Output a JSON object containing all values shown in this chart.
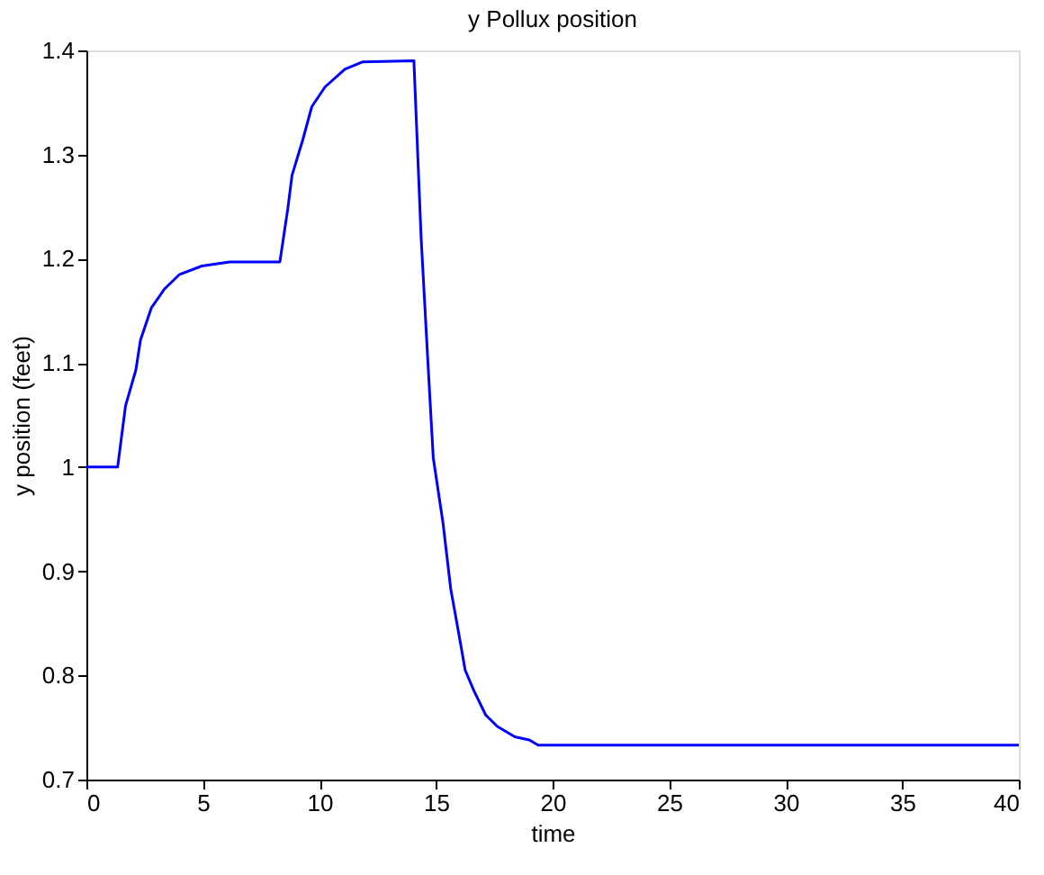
{
  "chart_data": {
    "type": "line",
    "title": "y Pollux position",
    "xlabel": "time",
    "ylabel": "y position (feet)",
    "xlim": [
      0,
      40
    ],
    "xticks": [
      0,
      5,
      10,
      15,
      20,
      25,
      30,
      35,
      40
    ],
    "ylim": [
      0.7,
      1.4
    ],
    "yticks": [
      0.7,
      0.8,
      0.9,
      1,
      1.1,
      1.2,
      1.3,
      1.4
    ],
    "grid": false,
    "marker": "none",
    "line_style": "solid",
    "series": [
      {
        "color": "#0000ff",
        "x": [
          0,
          1.34,
          1.68,
          2.12,
          2.32,
          2.79,
          3.35,
          4.0,
          4.95,
          6.14,
          8.3,
          8.64,
          8.82,
          9.28,
          9.67,
          10.24,
          11.09,
          11.86,
          14.05,
          14.36,
          14.64,
          14.88,
          15.3,
          15.63,
          16.0,
          16.25,
          16.63,
          17.13,
          17.63,
          18.38,
          19.0,
          19.38,
          40
        ],
        "values": [
          1.0,
          1.0,
          1.059,
          1.093,
          1.122,
          1.153,
          1.171,
          1.185,
          1.193,
          1.197,
          1.197,
          1.248,
          1.28,
          1.314,
          1.346,
          1.365,
          1.382,
          1.389,
          1.39,
          1.22,
          1.105,
          1.009,
          0.946,
          0.883,
          0.837,
          0.805,
          0.785,
          0.762,
          0.751,
          0.741,
          0.738,
          0.733,
          0.733
        ]
      }
    ]
  }
}
